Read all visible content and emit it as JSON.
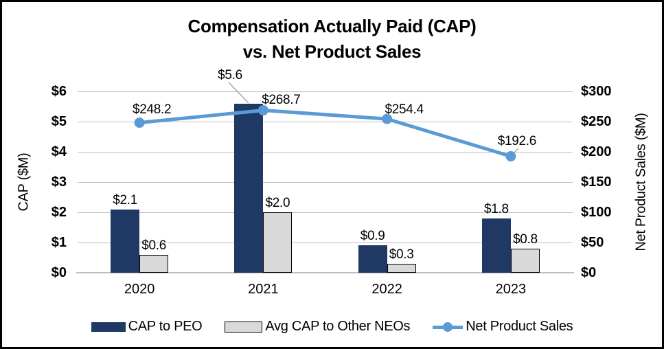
{
  "title": {
    "line1": "Compensation Actually Paid (CAP)",
    "line2": "vs. Net Product Sales"
  },
  "left_axis": {
    "title": "CAP ($M)",
    "ticks": [
      "$0",
      "$1",
      "$2",
      "$3",
      "$4",
      "$5",
      "$6"
    ],
    "min": 0,
    "max": 6
  },
  "right_axis": {
    "title": "Net Product Sales ($M)",
    "ticks": [
      "$0",
      "$50",
      "$100",
      "$150",
      "$200",
      "$250",
      "$300"
    ],
    "min": 0,
    "max": 300
  },
  "x_axis": {
    "categories": [
      "2020",
      "2021",
      "2022",
      "2023"
    ]
  },
  "legend": [
    {
      "label": "CAP to PEO",
      "swatch": "bar",
      "color": "#1F3864"
    },
    {
      "label": "Avg CAP to Other NEOs",
      "swatch": "bar",
      "color": "#D9D9D9",
      "border": "#000000"
    },
    {
      "label": "Net Product Sales",
      "swatch": "line",
      "color": "#5B9BD5"
    }
  ],
  "colors": {
    "peo_bar": "#1F3864",
    "neo_bar_fill": "#D9D9D9",
    "neo_bar_border": "#000000",
    "sales_line": "#5B9BD5",
    "gridline": "#BFBFBF",
    "leader_line": "#A6A6A6"
  },
  "chart_data": {
    "type": "combo-bar-line",
    "categories": [
      "2020",
      "2021",
      "2022",
      "2023"
    ],
    "series": [
      {
        "name": "CAP to PEO",
        "type": "bar",
        "axis": "left",
        "values": [
          2.1,
          5.6,
          0.9,
          1.8
        ],
        "data_labels": [
          "$2.1",
          "$5.6",
          "$0.9",
          "$1.8"
        ]
      },
      {
        "name": "Avg CAP to Other NEOs",
        "type": "bar",
        "axis": "left",
        "values": [
          0.6,
          2.0,
          0.3,
          0.8
        ],
        "data_labels": [
          "$0.6",
          "$2.0",
          "$0.3",
          "$0.8"
        ]
      },
      {
        "name": "Net Product Sales",
        "type": "line",
        "axis": "right",
        "values": [
          248.2,
          268.7,
          254.4,
          192.6
        ],
        "data_labels": [
          "$248.2",
          "$268.7",
          "$254.4",
          "$192.6"
        ]
      }
    ],
    "ylim_left": [
      0,
      6
    ],
    "ylim_right": [
      0,
      300
    ],
    "grid": true,
    "legend_position": "bottom"
  }
}
